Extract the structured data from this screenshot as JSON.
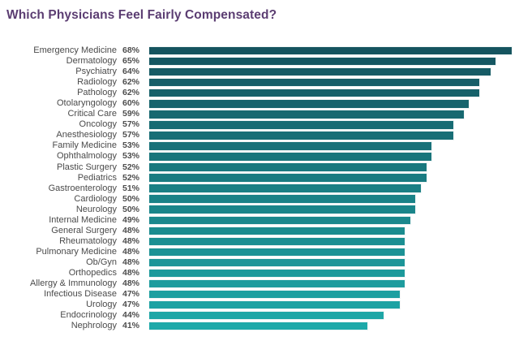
{
  "chart_data": {
    "type": "bar",
    "orientation": "horizontal",
    "title": "Which Physicians Feel Fairly Compensated?",
    "categories": [
      "Emergency Medicine",
      "Dermatology",
      "Psychiatry",
      "Radiology",
      "Pathology",
      "Otolaryngology",
      "Critical Care",
      "Oncology",
      "Anesthesiology",
      "Family Medicine",
      "Ophthalmology",
      "Plastic Surgery",
      "Pediatrics",
      "Gastroenterology",
      "Cardiology",
      "Neurology",
      "Internal Medicine",
      "General Surgery",
      "Rheumatology",
      "Pulmonary Medicine",
      "Ob/Gyn",
      "Orthopedics",
      "Allergy & Immunology",
      "Infectious Disease",
      "Urology",
      "Endocrinology",
      "Nephrology"
    ],
    "values": [
      68,
      65,
      64,
      62,
      62,
      60,
      59,
      57,
      57,
      53,
      53,
      52,
      52,
      51,
      50,
      50,
      49,
      48,
      48,
      48,
      48,
      48,
      48,
      47,
      47,
      44,
      41
    ],
    "value_suffix": "%",
    "xlim": [
      0,
      68
    ],
    "grid": false,
    "legend": false,
    "colors": {
      "title": "#5b3d72",
      "bar_gradient_start": "#15545f",
      "bar_gradient_end": "#1ea9a9",
      "category_label": "#4a4a4a",
      "value_label": "#4d4d4d",
      "background": "#ffffff"
    }
  }
}
